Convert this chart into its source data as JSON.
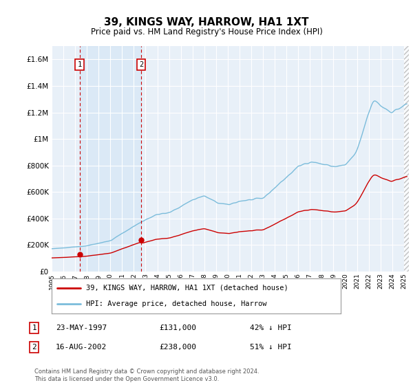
{
  "title": "39, KINGS WAY, HARROW, HA1 1XT",
  "subtitle": "Price paid vs. HM Land Registry's House Price Index (HPI)",
  "legend_line1": "39, KINGS WAY, HARROW, HA1 1XT (detached house)",
  "legend_line2": "HPI: Average price, detached house, Harrow",
  "transaction1_label": "1",
  "transaction1_date": "23-MAY-1997",
  "transaction1_price": "£131,000",
  "transaction1_hpi": "42% ↓ HPI",
  "transaction1_year": 1997.38,
  "transaction1_value": 131000,
  "transaction2_label": "2",
  "transaction2_date": "16-AUG-2002",
  "transaction2_price": "£238,000",
  "transaction2_hpi": "51% ↓ HPI",
  "transaction2_year": 2002.62,
  "transaction2_value": 238000,
  "footer": "Contains HM Land Registry data © Crown copyright and database right 2024.\nThis data is licensed under the Open Government Licence v3.0.",
  "hpi_color": "#7bbcdb",
  "price_color": "#cc0000",
  "vline_color": "#cc0000",
  "bg_color": "#ffffff",
  "plot_bg_color": "#e8f0f8",
  "highlight_color": "#d0e4f5",
  "ylim": [
    0,
    1700000
  ],
  "xlim_start": 1995.0,
  "xlim_end": 2025.42
}
